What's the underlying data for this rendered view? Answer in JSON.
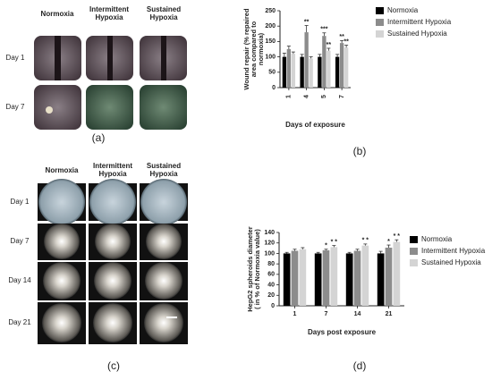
{
  "panel_labels": [
    "(a)",
    "(b)",
    "(c)",
    "(d)"
  ],
  "scratch_assay": {
    "columns": [
      "Normoxia",
      "Intermittent Hypoxia",
      "Sustained Hypoxia"
    ],
    "rows": [
      "Day 1",
      "Day 7"
    ]
  },
  "spheroids": {
    "columns": [
      "Normoxia",
      "Intermittent Hypoxia",
      "Sustained Hypoxia"
    ],
    "rows": [
      "Day 1",
      "Day 7",
      "Day 14",
      "Day 21"
    ]
  },
  "chart_data": [
    {
      "type": "bar",
      "xlabel": "Days of exposure",
      "ylabel": "Wound repair (% repaired area compared to normoxia)",
      "categories": [
        "1",
        "4",
        "5",
        "7"
      ],
      "ylim": [
        0,
        250
      ],
      "yticks": [
        0,
        50,
        100,
        150,
        200,
        250
      ],
      "series": [
        {
          "name": "Normoxia",
          "color": "#000000",
          "values": [
            100,
            100,
            100,
            100
          ],
          "errors": [
            12,
            8,
            8,
            8
          ],
          "significance": [
            null,
            null,
            null,
            null
          ]
        },
        {
          "name": "Intermittent Hypoxia",
          "color": "#8c8c8c",
          "values": [
            125,
            180,
            168,
            145
          ],
          "errors": [
            10,
            22,
            10,
            8
          ],
          "significance": [
            null,
            "**",
            "***",
            "**"
          ]
        },
        {
          "name": "Sustained Hypoxia",
          "color": "#d4d4d4",
          "values": [
            110,
            95,
            120,
            130
          ],
          "errors": [
            6,
            5,
            8,
            8
          ],
          "significance": [
            null,
            null,
            "**",
            "**"
          ]
        }
      ]
    },
    {
      "type": "bar",
      "xlabel": "Days post exposure",
      "ylabel": "HepG2 spheroids diameter ( in % of Normoxia value)",
      "categories": [
        "1",
        "7",
        "14",
        "21"
      ],
      "ylim": [
        0,
        140
      ],
      "yticks": [
        0,
        20,
        40,
        60,
        80,
        100,
        120,
        140
      ],
      "series": [
        {
          "name": "Normoxia",
          "color": "#000000",
          "values": [
            100,
            100,
            100,
            100
          ],
          "errors": [
            2,
            2,
            2,
            4
          ],
          "significance": [
            null,
            null,
            null,
            null
          ]
        },
        {
          "name": "Intermittent Hypoxia",
          "color": "#8c8c8c",
          "values": [
            105,
            106,
            105,
            111
          ],
          "errors": [
            3,
            2,
            3,
            5
          ],
          "significance": [
            null,
            "*",
            null,
            "*"
          ]
        },
        {
          "name": "Sustained Hypoxia",
          "color": "#d4d4d4",
          "values": [
            108,
            112,
            115,
            122
          ],
          "errors": [
            3,
            3,
            3,
            4
          ],
          "significance": [
            null,
            "* *",
            "* *",
            "* *"
          ]
        }
      ]
    }
  ]
}
